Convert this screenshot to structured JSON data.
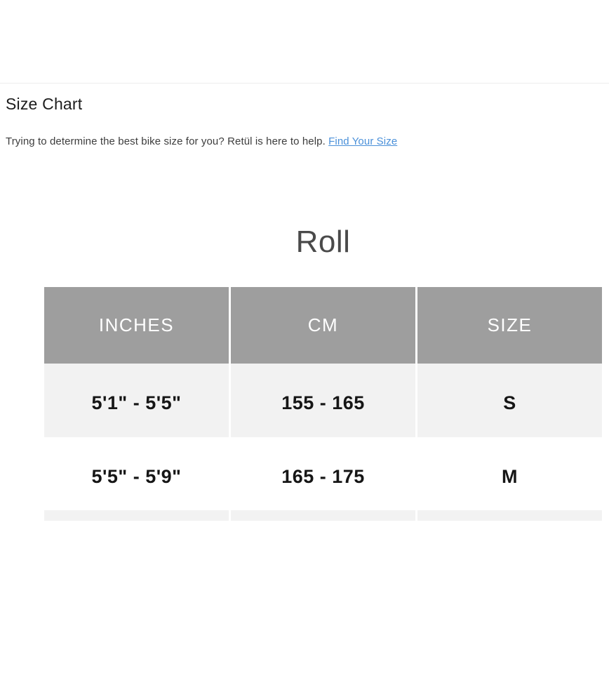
{
  "section": {
    "title": "Size Chart",
    "intro_text": "Trying to determine the best bike size for you? Retül is here to help.",
    "link_label": "Find Your Size"
  },
  "size_table": {
    "product_name": "Roll",
    "columns": [
      "INCHES",
      "CM",
      "SIZE"
    ],
    "rows": [
      {
        "inches": "5'1\" - 5'5\"",
        "cm": "155 - 165",
        "size": "S"
      },
      {
        "inches": "5'5\" - 5'9\"",
        "cm": "165 - 175",
        "size": "M"
      }
    ]
  },
  "colors": {
    "header_bg": "#9e9e9e",
    "header_text": "#ffffff",
    "alt_row_bg": "#f2f2f2",
    "link": "#4a90d9",
    "product_title_text": "#4a4a4a",
    "cell_text": "#161616"
  }
}
